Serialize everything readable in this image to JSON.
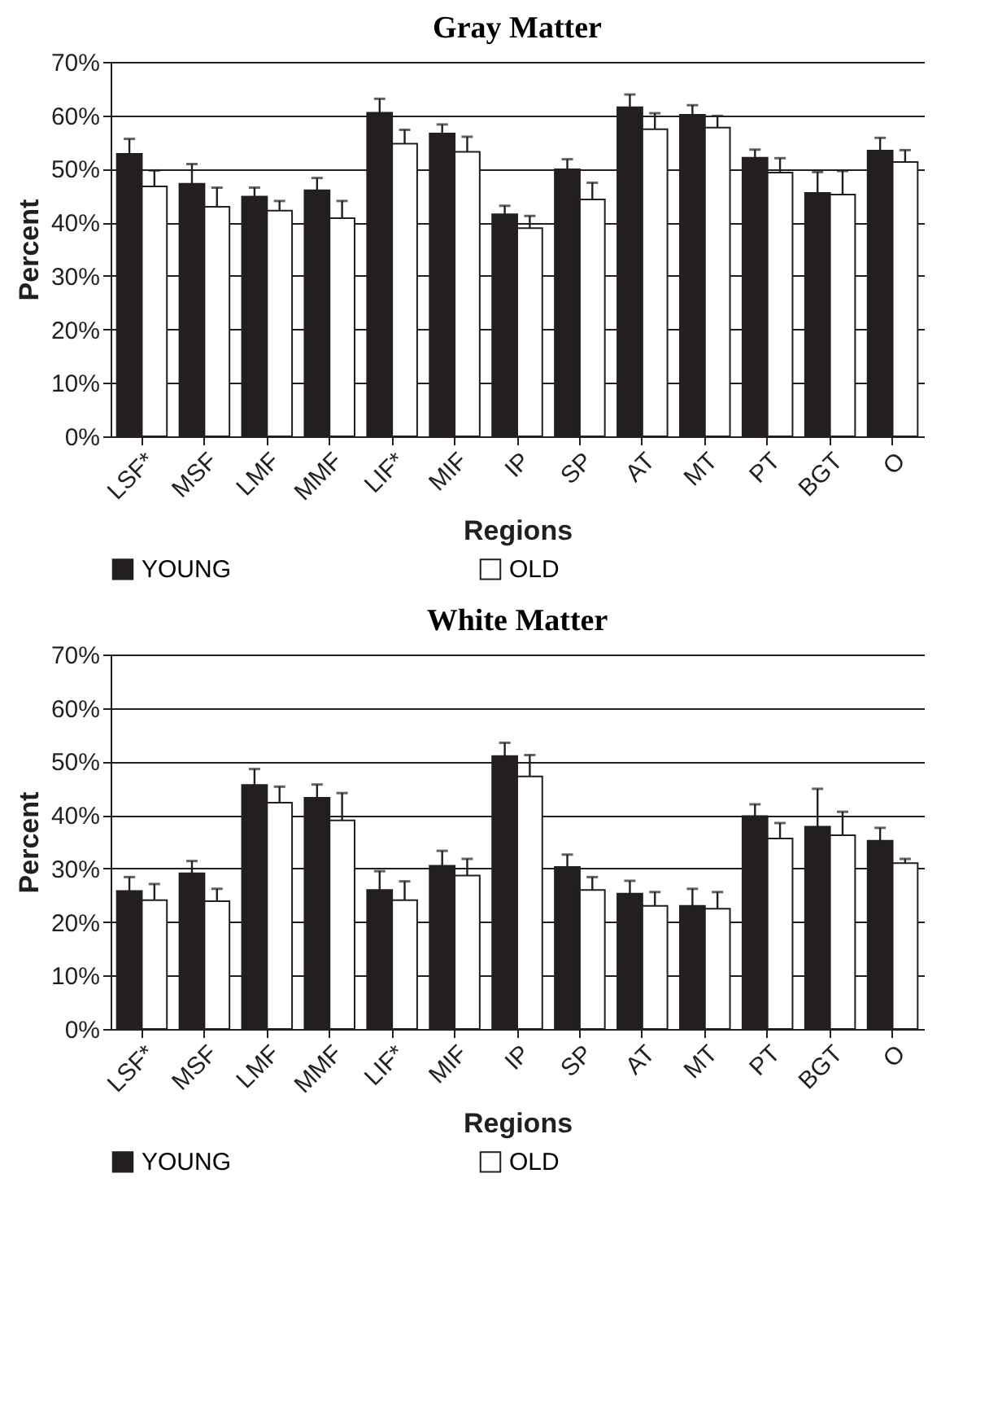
{
  "chart_data": [
    {
      "type": "bar",
      "title": "Gray Matter",
      "xlabel": "Regions",
      "ylabel": "Percent",
      "categories": [
        "LSF*",
        "MSF",
        "LMF",
        "MMF",
        "LIF*",
        "MIF",
        "IP",
        "SP",
        "AT",
        "MT",
        "PT",
        "BGT",
        "O"
      ],
      "series": [
        {
          "name": "YOUNG",
          "color": "#231f20",
          "values": [
            52.8,
            47.2,
            44.8,
            46.0,
            60.5,
            56.6,
            41.5,
            49.9,
            61.5,
            60.1,
            52.1,
            45.5,
            53.4
          ],
          "errors": [
            [
              52.8,
              55.6
            ],
            [
              47.2,
              50.9
            ],
            [
              44.8,
              46.5
            ],
            [
              46.0,
              48.3
            ],
            [
              60.5,
              63.1
            ],
            [
              56.6,
              58.3
            ],
            [
              41.5,
              43.1
            ],
            [
              49.9,
              51.8
            ],
            [
              61.5,
              63.9
            ],
            [
              60.1,
              61.9
            ],
            [
              52.1,
              53.6
            ],
            [
              45.5,
              49.4
            ],
            [
              53.4,
              55.8
            ]
          ]
        },
        {
          "name": "OLD",
          "color": "#ffffff",
          "values": [
            46.7,
            42.9,
            42.2,
            40.8,
            54.7,
            53.2,
            38.9,
            44.3,
            57.4,
            57.7,
            49.3,
            45.2,
            51.3
          ],
          "errors": [
            [
              46.7,
              49.7
            ],
            [
              42.9,
              46.5
            ],
            [
              42.2,
              44.0
            ],
            [
              40.8,
              44.0
            ],
            [
              54.7,
              57.3
            ],
            [
              53.2,
              56.0
            ],
            [
              38.9,
              41.2
            ],
            [
              44.3,
              47.4
            ],
            [
              57.4,
              60.4
            ],
            [
              57.7,
              59.9
            ],
            [
              49.3,
              52.0
            ],
            [
              45.2,
              49.6
            ],
            [
              51.3,
              53.5
            ]
          ]
        }
      ],
      "ylim": [
        0,
        70
      ],
      "yticks": [
        {
          "value": 0,
          "label": "0%"
        },
        {
          "value": 10,
          "label": "10%"
        },
        {
          "value": 20,
          "label": "20%"
        },
        {
          "value": 30,
          "label": "30%"
        },
        {
          "value": 40,
          "label": "40%"
        },
        {
          "value": 50,
          "label": "50%"
        },
        {
          "value": 60,
          "label": "60%"
        },
        {
          "value": 70,
          "label": "70%"
        }
      ],
      "grid": "y",
      "legend": "bottom"
    },
    {
      "type": "bar",
      "title": "White Matter",
      "xlabel": "Regions",
      "ylabel": "Percent",
      "categories": [
        "LSF*",
        "MSF",
        "LMF",
        "MMF",
        "LIF*",
        "MIF",
        "IP",
        "SP",
        "AT",
        "MT",
        "PT",
        "BGT",
        "O"
      ],
      "series": [
        {
          "name": "YOUNG",
          "color": "#231f20",
          "values": [
            25.8,
            29.1,
            45.6,
            43.2,
            26.0,
            30.5,
            51.0,
            30.3,
            25.3,
            23.0,
            39.8,
            37.8,
            35.2
          ],
          "errors": [
            [
              25.8,
              28.4
            ],
            [
              29.1,
              31.4
            ],
            [
              45.6,
              48.6
            ],
            [
              43.2,
              45.7
            ],
            [
              26.0,
              29.5
            ],
            [
              30.5,
              33.3
            ],
            [
              51.0,
              53.5
            ],
            [
              30.3,
              32.6
            ],
            [
              25.3,
              27.7
            ],
            [
              23.0,
              26.2
            ],
            [
              39.8,
              42.0
            ],
            [
              37.8,
              44.9
            ],
            [
              35.2,
              37.6
            ]
          ]
        },
        {
          "name": "OLD",
          "color": "#ffffff",
          "values": [
            24.1,
            23.9,
            42.3,
            39.0,
            24.1,
            28.7,
            47.2,
            26.0,
            23.0,
            22.5,
            35.6,
            36.2,
            31.0
          ],
          "errors": [
            [
              24.1,
              27.1
            ],
            [
              23.9,
              26.2
            ],
            [
              42.3,
              45.3
            ],
            [
              39.0,
              44.1
            ],
            [
              24.1,
              27.6
            ],
            [
              28.7,
              31.8
            ],
            [
              47.2,
              51.2
            ],
            [
              26.0,
              28.4
            ],
            [
              23.0,
              25.6
            ],
            [
              22.5,
              25.6
            ],
            [
              35.6,
              38.5
            ],
            [
              36.2,
              40.6
            ],
            [
              31.0,
              31.8
            ]
          ]
        }
      ],
      "ylim": [
        0,
        70
      ],
      "yticks": [
        {
          "value": 0,
          "label": "0%"
        },
        {
          "value": 10,
          "label": "10%"
        },
        {
          "value": 20,
          "label": "20%"
        },
        {
          "value": 30,
          "label": "30%"
        },
        {
          "value": 40,
          "label": "40%"
        },
        {
          "value": 50,
          "label": "50%"
        },
        {
          "value": 60,
          "label": "60%"
        },
        {
          "value": 70,
          "label": "70%"
        }
      ],
      "grid": "y",
      "legend": "bottom"
    }
  ]
}
